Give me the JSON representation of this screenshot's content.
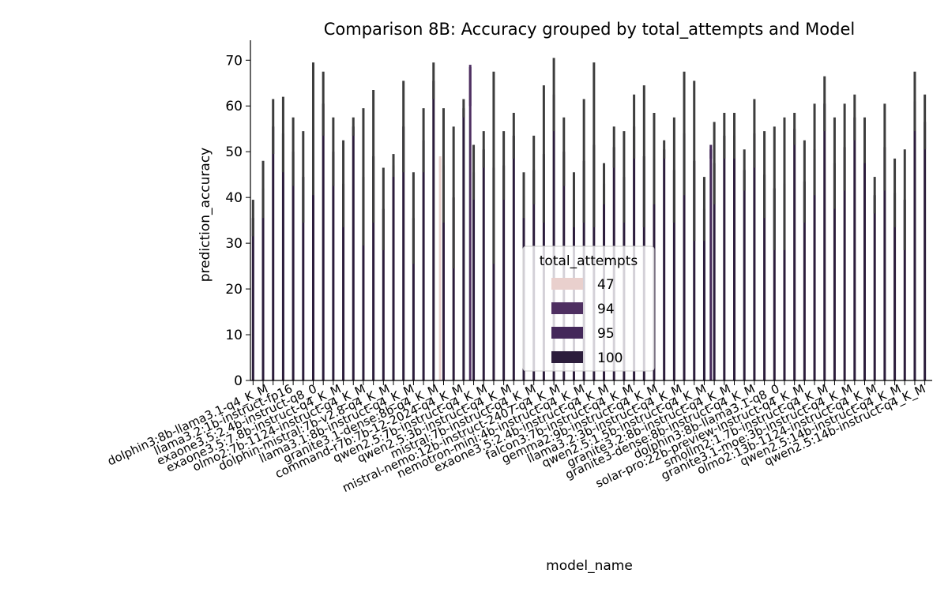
{
  "chart_data": {
    "type": "bar",
    "title": "Comparison 8B: Accuracy grouped by total_attempts and Model",
    "xlabel": "model_name",
    "ylabel": "prediction_accuracy",
    "ylim": [
      0,
      73.5
    ],
    "yticks": [
      0,
      10,
      20,
      30,
      40,
      50,
      60,
      70
    ],
    "grid": false,
    "legend": {
      "title": "total_attempts",
      "placement": "center-bottom",
      "entries": [
        {
          "name": "47",
          "color": "#e9d0cd"
        },
        {
          "name": "94",
          "color": "#4e2f61"
        },
        {
          "name": "95",
          "color": "#44285a"
        },
        {
          "name": "100",
          "color": "#2c1d3c"
        }
      ]
    },
    "bar_color": "#2c1d3c",
    "errorbar_color": "#3d3d3d",
    "bars": [
      {
        "value": 35.5,
        "ci": [
          31.5,
          39.5
        ]
      },
      {
        "value": 42.0,
        "ci": [
          35.5,
          48.0
        ]
      },
      {
        "value": 55.5,
        "ci": [
          49.5,
          61.5
        ]
      },
      {
        "value": 54.0,
        "ci": [
          45.5,
          62.0
        ]
      },
      {
        "value": 50.0,
        "ci": [
          42.5,
          57.5
        ]
      },
      {
        "value": 44.5,
        "ci": [
          34.5,
          54.5
        ]
      },
      {
        "value": 55.0,
        "ci": [
          40.5,
          69.5
        ]
      },
      {
        "value": 60.5,
        "ci": [
          53.5,
          67.5
        ]
      },
      {
        "value": 50.0,
        "ci": [
          42.5,
          57.5
        ]
      },
      {
        "value": 43.0,
        "ci": [
          33.5,
          52.5
        ]
      },
      {
        "value": 55.5,
        "ci": [
          53.5,
          57.5
        ]
      },
      {
        "value": 44.5,
        "ci": [
          29.5,
          59.5
        ]
      },
      {
        "value": 49.0,
        "ci": [
          34.5,
          63.5
        ]
      },
      {
        "value": 37.5,
        "ci": [
          28.5,
          46.5
        ]
      },
      {
        "value": 47.0,
        "ci": [
          44.5,
          49.5
        ]
      },
      {
        "value": 55.5,
        "ci": [
          45.5,
          65.5
        ]
      },
      {
        "value": 35.5,
        "ci": [
          25.5,
          45.5
        ]
      },
      {
        "value": 52.5,
        "ci": [
          45.5,
          59.5
        ]
      },
      {
        "value": 65.5,
        "ci": [
          61.5,
          69.5
        ]
      },
      {
        "value": 47.0,
        "ci": [
          34.5,
          59.5
        ]
      },
      {
        "value": 40.0,
        "ci": [
          24.5,
          55.5
        ]
      },
      {
        "value": 59.5,
        "ci": [
          57.5,
          61.5
        ]
      },
      {
        "value": 45.5,
        "ci": [
          39.5,
          51.5
        ]
      },
      {
        "value": 50.5,
        "ci": [
          46.5,
          54.5
        ]
      },
      {
        "value": 46.5,
        "ci": [
          25.5,
          67.5
        ]
      },
      {
        "value": 47.0,
        "ci": [
          39.5,
          54.5
        ]
      },
      {
        "value": 53.5,
        "ci": [
          48.5,
          58.5
        ]
      },
      {
        "value": 40.5,
        "ci": [
          35.5,
          45.5
        ]
      },
      {
        "value": 46.0,
        "ci": [
          38.5,
          53.5
        ]
      },
      {
        "value": 49.5,
        "ci": [
          34.5,
          64.5
        ]
      },
      {
        "value": 62.5,
        "ci": [
          54.5,
          70.5
        ]
      },
      {
        "value": 50.0,
        "ci": [
          42.5,
          57.5
        ]
      },
      {
        "value": 39.5,
        "ci": [
          33.5,
          45.5
        ]
      },
      {
        "value": 48.0,
        "ci": [
          34.5,
          61.5
        ]
      },
      {
        "value": 51.5,
        "ci": [
          33.5,
          69.5
        ]
      },
      {
        "value": 43.0,
        "ci": [
          38.5,
          47.5
        ]
      },
      {
        "value": 51.0,
        "ci": [
          46.5,
          55.5
        ]
      },
      {
        "value": 44.5,
        "ci": [
          34.5,
          54.5
        ]
      },
      {
        "value": 55.5,
        "ci": [
          48.5,
          62.5
        ]
      },
      {
        "value": 49.0,
        "ci": [
          33.5,
          64.5
        ]
      },
      {
        "value": 48.5,
        "ci": [
          38.5,
          58.5
        ]
      },
      {
        "value": 50.5,
        "ci": [
          48.5,
          52.5
        ]
      },
      {
        "value": 46.0,
        "ci": [
          34.5,
          57.5
        ]
      },
      {
        "value": 54.0,
        "ci": [
          40.5,
          67.5
        ]
      },
      {
        "value": 48.0,
        "ci": [
          30.5,
          65.5
        ]
      },
      {
        "value": 37.5,
        "ci": [
          30.5,
          44.5
        ]
      },
      {
        "value": 47.5,
        "ci": [
          38.5,
          56.5
        ]
      },
      {
        "value": 53.5,
        "ci": [
          48.5,
          58.5
        ]
      },
      {
        "value": 53.5,
        "ci": [
          48.5,
          58.5
        ]
      },
      {
        "value": 46.0,
        "ci": [
          41.5,
          50.5
        ]
      },
      {
        "value": 54.0,
        "ci": [
          46.5,
          61.5
        ]
      },
      {
        "value": 45.0,
        "ci": [
          35.5,
          54.5
        ]
      },
      {
        "value": 42.0,
        "ci": [
          28.5,
          55.5
        ]
      },
      {
        "value": 43.0,
        "ci": [
          28.5,
          57.5
        ]
      },
      {
        "value": 55.0,
        "ci": [
          51.5,
          58.5
        ]
      },
      {
        "value": 43.5,
        "ci": [
          34.5,
          52.5
        ]
      },
      {
        "value": 50.5,
        "ci": [
          40.5,
          60.5
        ]
      },
      {
        "value": 60.5,
        "ci": [
          54.5,
          66.5
        ]
      },
      {
        "value": 47.5,
        "ci": [
          37.5,
          57.5
        ]
      },
      {
        "value": 51.0,
        "ci": [
          41.5,
          60.5
        ]
      },
      {
        "value": 57.5,
        "ci": [
          52.5,
          62.5
        ]
      },
      {
        "value": 52.5,
        "ci": [
          47.5,
          57.5
        ]
      },
      {
        "value": 40.5,
        "ci": [
          36.5,
          44.5
        ]
      },
      {
        "value": 51.0,
        "ci": [
          41.5,
          60.5
        ]
      },
      {
        "value": 41.0,
        "ci": [
          33.5,
          48.5
        ]
      },
      {
        "value": 39.5,
        "ci": [
          28.5,
          50.5
        ]
      },
      {
        "value": 61.0,
        "ci": [
          54.5,
          67.5
        ]
      },
      {
        "value": 56.5,
        "ci": [
          50.5,
          62.5
        ]
      }
    ],
    "extra_bars": [
      {
        "after_index": 18,
        "legend": "47",
        "value": 48.5,
        "ci": [
          45.5,
          49.0
        ]
      },
      {
        "after_index": 21,
        "legend": "94",
        "value": 68.5,
        "ci": [
          60.0,
          69.0
        ]
      },
      {
        "after_index": 45,
        "legend": "95",
        "value": 50.5,
        "ci": [
          48.5,
          51.5
        ]
      }
    ],
    "categories": [
      "dolphin3:8b-llama3.1-q4_K_M",
      "llama3.2:1b-instruct-fp16",
      "exaone3.5:2.4b-instruct-q8_0",
      "exaone3.5:7.8b-instruct-q4_K_M",
      "olmo2:7b-1124-instruct-q4_K_M",
      "dolphin-mistral:7b-v2.8-q4_K_M",
      "llama3.1:8b-instruct-q4_K_M",
      "granite3.1-dense:8b-q4_K_M",
      "command-r7b:7b-12-2024-q4_K_M",
      "qwen2.5:7b-instruct-q4_K_M",
      "qwen2.5:3b-instruct-q4_K_M",
      "mistral:7b-instruct-q4_K_M",
      "mistral-nemo:12b-instruct-2407-q4_K_M",
      "nemotron-mini:4b-instruct-q4_K_M",
      "exaone3.5:2.4b-instruct-q4_K_M",
      "falcon3:7b-instruct-q4_K_M",
      "gemma2:9b-instruct-q4_K_M",
      "llama3.2:3b-instruct-q4_K_M",
      "qwen2.5:1.5b-instruct-q4_K_M",
      "granite3.2:8b-instruct-q4_K_M",
      "granite3-dense:8b-instruct-q4_K_M",
      "dolphin3:8b-llama3.1-q8_0",
      "solar-pro:22b-preview-instruct-q4_K_M",
      "smollm2:1.7b-instruct-q4_K_M",
      "granite3.1-moe:3b-instruct-q4_K_M",
      "olmo2:13b-1124-instruct-q4_K_M",
      "qwen2.5:14b-instruct-q4_K_M",
      "qwen2.5:14b-instruct-q4_K_M"
    ]
  }
}
